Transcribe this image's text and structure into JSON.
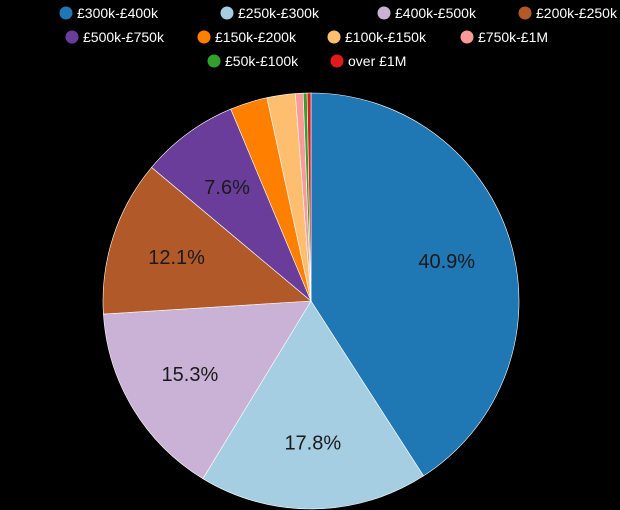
{
  "chart_data": {
    "type": "pie",
    "title": "",
    "slices": [
      {
        "label": "£300k-£400k",
        "value": 40.9,
        "color": "#1f77b4",
        "display": "40.9%"
      },
      {
        "label": "£250k-£300k",
        "value": 17.8,
        "color": "#a6cee3",
        "display": "17.8%"
      },
      {
        "label": "£400k-£500k",
        "value": 15.3,
        "color": "#cab2d6",
        "display": "15.3%"
      },
      {
        "label": "£200k-£250k",
        "value": 12.1,
        "color": "#b15928",
        "display": "12.1%"
      },
      {
        "label": "£500k-£750k",
        "value": 7.6,
        "color": "#6a3d9a",
        "display": "7.6%"
      },
      {
        "label": "£150k-£200k",
        "value": 2.9,
        "color": "#ff7f00",
        "display": ""
      },
      {
        "label": "£100k-£150k",
        "value": 2.2,
        "color": "#fdbf6f",
        "display": ""
      },
      {
        "label": "£750k-£1M",
        "value": 0.6,
        "color": "#fb9a99",
        "display": ""
      },
      {
        "label": "£50k-£100k",
        "value": 0.3,
        "color": "#33a02c",
        "display": ""
      },
      {
        "label": "over £1M",
        "value": 0.3,
        "color": "#e31a1c",
        "display": ""
      }
    ],
    "legend_position": "top"
  }
}
